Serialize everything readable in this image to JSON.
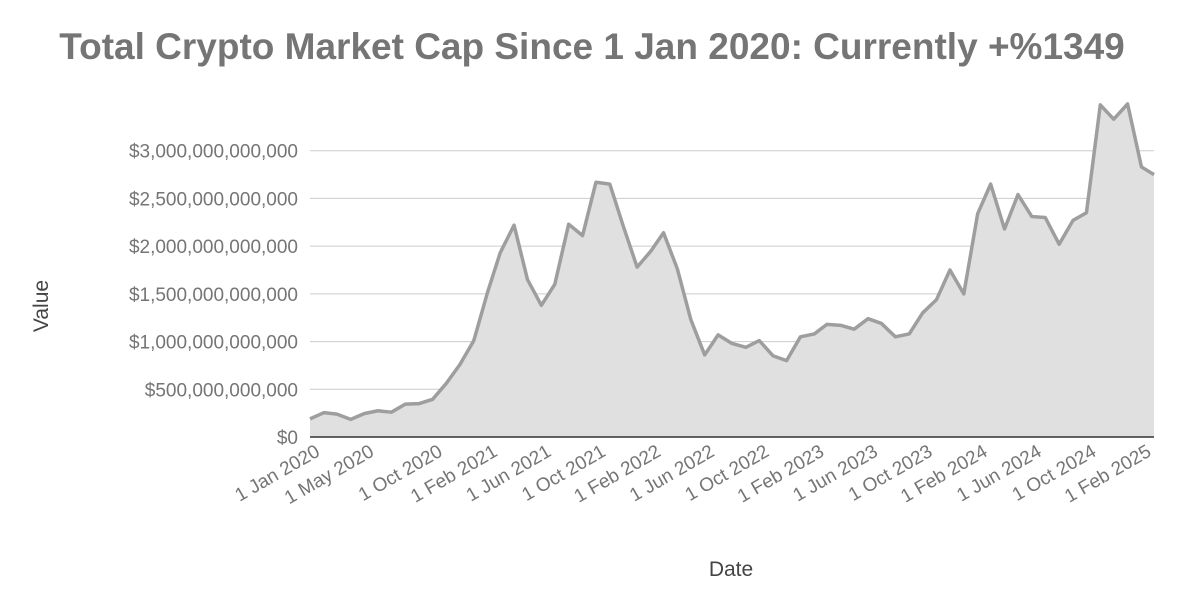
{
  "chart_data": {
    "type": "area",
    "title": "Total Crypto Market Cap Since 1 Jan 2020: Currently +%1349",
    "xlabel": "Date",
    "ylabel": "Value",
    "ylim": [
      0,
      3500000000000
    ],
    "grid": true,
    "legend": "none",
    "colors": {
      "line": "#9e9e9e",
      "fill": "#e0e0e0",
      "grid": "#cccccc",
      "baseline": "#333333",
      "text": "#757575"
    },
    "y_ticks": [
      {
        "value": 0,
        "label": "$0"
      },
      {
        "value": 500000000000,
        "label": "$500,000,000,000"
      },
      {
        "value": 1000000000000,
        "label": "$1,000,000,000,000"
      },
      {
        "value": 1500000000000,
        "label": "$1,500,000,000,000"
      },
      {
        "value": 2000000000000,
        "label": "$2,000,000,000,000"
      },
      {
        "value": 2500000000000,
        "label": "$2,500,000,000,000"
      },
      {
        "value": 3000000000000,
        "label": "$3,000,000,000,000"
      }
    ],
    "x_ticks": [
      "1 Jan 2020",
      "1 May 2020",
      "1 Oct 2020",
      "1 Feb 2021",
      "1 Jun 2021",
      "1 Oct 2021",
      "1 Feb 2022",
      "1 Jun 2022",
      "1 Oct 2022",
      "1 Feb 2023",
      "1 Jun 2023",
      "1 Oct 2023",
      "1 Feb 2024",
      "1 Jun 2024",
      "1 Oct 2024",
      "1 Feb 2025"
    ],
    "series": [
      {
        "x": [
          "2020-01-01",
          "2020-02-01",
          "2020-03-01",
          "2020-04-01",
          "2020-05-01",
          "2020-06-01",
          "2020-07-01",
          "2020-08-01",
          "2020-09-01",
          "2020-10-01",
          "2020-11-01",
          "2020-12-01",
          "2021-01-01",
          "2021-02-01",
          "2021-03-01",
          "2021-04-01",
          "2021-05-01",
          "2021-06-01",
          "2021-07-01",
          "2021-08-01",
          "2021-09-01",
          "2021-10-01",
          "2021-11-01",
          "2021-12-01",
          "2022-01-01",
          "2022-02-01",
          "2022-03-01",
          "2022-04-01",
          "2022-05-01",
          "2022-06-01",
          "2022-07-01",
          "2022-08-01",
          "2022-09-01",
          "2022-10-01",
          "2022-11-01",
          "2022-12-01",
          "2023-01-01",
          "2023-02-01",
          "2023-03-01",
          "2023-04-01",
          "2023-05-01",
          "2023-06-01",
          "2023-07-01",
          "2023-08-01",
          "2023-09-01",
          "2023-10-01",
          "2023-11-01",
          "2023-12-01",
          "2024-01-01",
          "2024-02-01",
          "2024-03-01",
          "2024-04-01",
          "2024-05-01",
          "2024-06-01",
          "2024-07-01",
          "2024-08-01",
          "2024-09-01",
          "2024-10-01",
          "2024-11-01",
          "2024-12-01",
          "2025-01-01",
          "2025-02-01",
          "2025-03-01"
        ],
        "values": [
          190000000000,
          255000000000,
          240000000000,
          185000000000,
          245000000000,
          275000000000,
          260000000000,
          345000000000,
          350000000000,
          395000000000,
          565000000000,
          760000000000,
          1010000000000,
          1520000000000,
          1930000000000,
          2220000000000,
          1650000000000,
          1380000000000,
          1600000000000,
          2230000000000,
          2110000000000,
          2670000000000,
          2650000000000,
          2210000000000,
          1780000000000,
          1950000000000,
          2140000000000,
          1760000000000,
          1230000000000,
          860000000000,
          1070000000000,
          980000000000,
          940000000000,
          1010000000000,
          850000000000,
          800000000000,
          1050000000000,
          1080000000000,
          1180000000000,
          1170000000000,
          1130000000000,
          1240000000000,
          1190000000000,
          1050000000000,
          1080000000000,
          1300000000000,
          1440000000000,
          1750000000000,
          1500000000000,
          2340000000000,
          2650000000000,
          2180000000000,
          2540000000000,
          2310000000000,
          2300000000000,
          2020000000000,
          2270000000000,
          2350000000000,
          3480000000000,
          3330000000000,
          3490000000000,
          2830000000000,
          2750000000000
        ]
      }
    ]
  }
}
